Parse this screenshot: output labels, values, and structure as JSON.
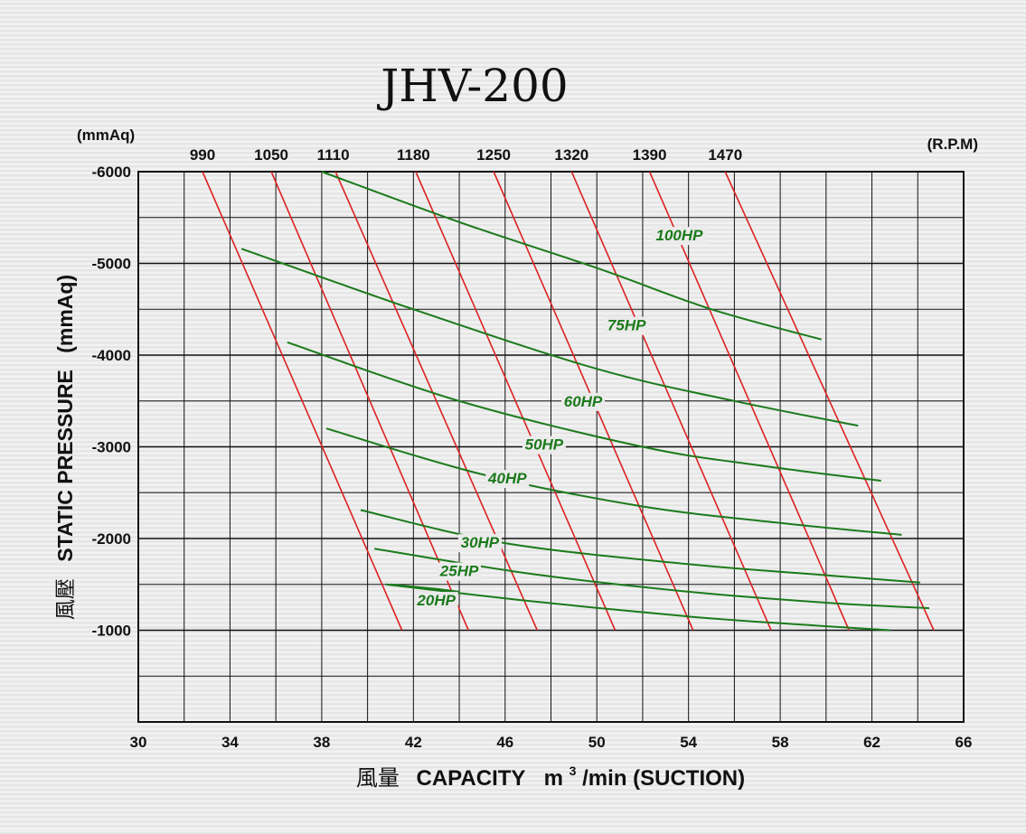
{
  "chart_data": {
    "type": "line",
    "title": "JHV-200",
    "xlabel_cjk": "風量",
    "xlabel": "CAPACITY",
    "xlabel_unit_pre": "m",
    "xlabel_unit_sup": "3",
    "xlabel_unit_post": "/min (SUCTION)",
    "ylabel_cjk": "風壓",
    "ylabel": "STATIC  PRESSURE",
    "ylabel_unit": "(mmAq)",
    "y_unit_top": "(mmAq)",
    "rpm_unit": "(R.P.M)",
    "xlim": [
      30,
      66
    ],
    "ylim": [
      0,
      -6000
    ],
    "grid": true,
    "x_ticks": [
      "30",
      "34",
      "38",
      "42",
      "46",
      "50",
      "54",
      "58",
      "62",
      "66"
    ],
    "y_ticks": [
      "-6000",
      "-5000",
      "-4000",
      "-3000",
      "-2000",
      "-1000"
    ],
    "colors": {
      "rpm": "#dd2222",
      "hp": "#1b7a1b",
      "hp_label": "#1b7a1b",
      "grid": "#111111"
    },
    "rpm_series": [
      {
        "name": "990",
        "label_x": 32.8,
        "points": [
          [
            32.8,
            -6000
          ],
          [
            41.5,
            -1000
          ]
        ]
      },
      {
        "name": "1050",
        "label_x": 35.8,
        "points": [
          [
            35.8,
            -6000
          ],
          [
            44.4,
            -1000
          ]
        ]
      },
      {
        "name": "1110",
        "label_x": 38.5,
        "points": [
          [
            38.6,
            -6000
          ],
          [
            47.4,
            -1000
          ]
        ]
      },
      {
        "name": "1180",
        "label_x": 42.0,
        "points": [
          [
            42.1,
            -6000
          ],
          [
            50.8,
            -1000
          ]
        ]
      },
      {
        "name": "1250",
        "label_x": 45.5,
        "points": [
          [
            45.5,
            -6000
          ],
          [
            54.2,
            -1000
          ]
        ]
      },
      {
        "name": "1320",
        "label_x": 48.9,
        "points": [
          [
            48.9,
            -6000
          ],
          [
            57.6,
            -1000
          ]
        ]
      },
      {
        "name": "1390",
        "label_x": 52.3,
        "points": [
          [
            52.3,
            -6000
          ],
          [
            61.0,
            -1000
          ]
        ]
      },
      {
        "name": "1470",
        "label_x": 55.6,
        "points": [
          [
            55.6,
            -6000
          ],
          [
            64.7,
            -1000
          ]
        ]
      }
    ],
    "hp_series": [
      {
        "name": "100HP",
        "label_xy": [
          53.6,
          -5250
        ],
        "points": [
          [
            38.0,
            -6000
          ],
          [
            44.0,
            -5450
          ],
          [
            50.0,
            -4950
          ],
          [
            55.0,
            -4500
          ],
          [
            59.8,
            -4170
          ]
        ]
      },
      {
        "name": "75HP",
        "label_xy": [
          51.3,
          -4270
        ],
        "points": [
          [
            34.5,
            -5160
          ],
          [
            42.0,
            -4500
          ],
          [
            50.0,
            -3850
          ],
          [
            56.0,
            -3500
          ],
          [
            61.4,
            -3230
          ]
        ]
      },
      {
        "name": "60HP",
        "label_xy": [
          49.4,
          -3440
        ],
        "points": [
          [
            36.5,
            -4140
          ],
          [
            44.0,
            -3500
          ],
          [
            52.0,
            -3000
          ],
          [
            57.0,
            -2800
          ],
          [
            62.4,
            -2630
          ]
        ]
      },
      {
        "name": "50HP",
        "label_xy": [
          47.7,
          -2970
        ],
        "points": [
          [
            38.2,
            -3200
          ],
          [
            45.0,
            -2700
          ],
          [
            52.0,
            -2350
          ],
          [
            58.0,
            -2170
          ],
          [
            63.3,
            -2040
          ]
        ]
      },
      {
        "name": "40HP",
        "label_xy": [
          46.1,
          -2600
        ],
        "points": [
          [
            39.7,
            -2310
          ],
          [
            46.0,
            -1950
          ],
          [
            54.0,
            -1720
          ],
          [
            60.0,
            -1600
          ],
          [
            64.1,
            -1520
          ]
        ]
      },
      {
        "name": "30HP",
        "label_xy": [
          44.9,
          -1900
        ],
        "points": [
          [
            40.3,
            -1890
          ],
          [
            47.0,
            -1620
          ],
          [
            54.0,
            -1420
          ],
          [
            60.0,
            -1300
          ],
          [
            64.5,
            -1240
          ]
        ]
      },
      {
        "name": "25HP",
        "label_xy": [
          44.0,
          -1590
        ],
        "points": [
          [
            40.8,
            -1500
          ],
          [
            47.0,
            -1320
          ],
          [
            54.0,
            -1150
          ],
          [
            59.0,
            -1060
          ],
          [
            62.8,
            -1000
          ]
        ]
      },
      {
        "name": "20HP",
        "label_xy": [
          43.0,
          -1270
        ],
        "points": [
          [
            41.0,
            -1500
          ],
          [
            43.0,
            -1450
          ],
          [
            44.0,
            -1420
          ]
        ]
      }
    ]
  }
}
